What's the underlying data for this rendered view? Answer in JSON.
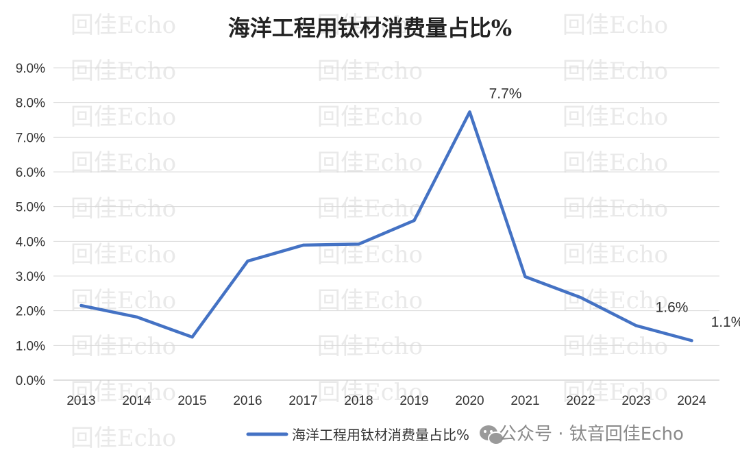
{
  "chart_data": {
    "type": "line",
    "title": "海洋工程用钛材消费量占比%",
    "xlabel": "",
    "ylabel": "",
    "categories": [
      "2013",
      "2014",
      "2015",
      "2016",
      "2017",
      "2018",
      "2019",
      "2020",
      "2021",
      "2022",
      "2023",
      "2024"
    ],
    "series": [
      {
        "name": "海洋工程用钛材消费量占比%",
        "color": "#4472C4",
        "values": [
          2.15,
          1.82,
          1.24,
          3.43,
          3.89,
          3.92,
          4.6,
          7.73,
          2.98,
          2.38,
          1.57,
          1.14
        ]
      }
    ],
    "data_labels": [
      {
        "category": "2020",
        "text": "7.7%"
      },
      {
        "category": "2023",
        "text": "1.6%"
      },
      {
        "category": "2024",
        "text": "1.1%"
      }
    ],
    "y_ticks": [
      "0.0%",
      "1.0%",
      "2.0%",
      "3.0%",
      "4.0%",
      "5.0%",
      "6.0%",
      "7.0%",
      "8.0%",
      "9.0%"
    ],
    "ylim": [
      0,
      9
    ],
    "grid": true,
    "legend_position": "bottom"
  },
  "watermark": {
    "text": "回佳Echo",
    "footer": "公众号 · 钛音回佳Echo",
    "footer_icon": "wechat-icon"
  }
}
